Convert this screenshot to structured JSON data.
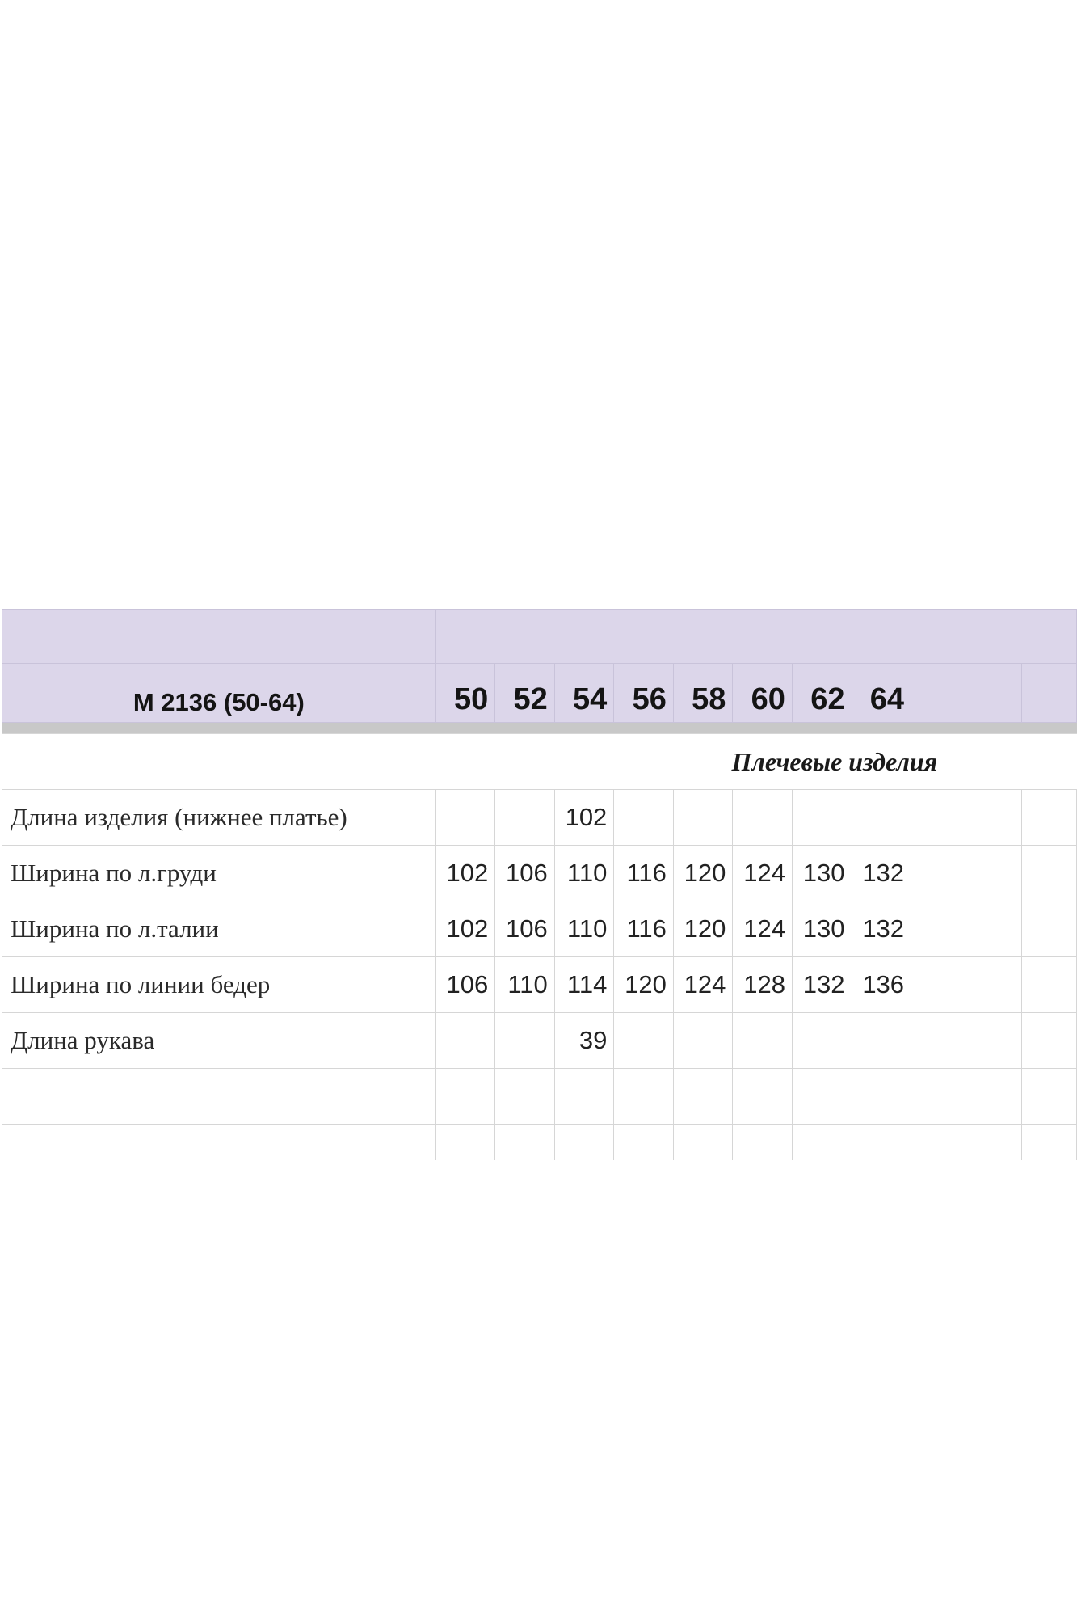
{
  "table": {
    "model_label": "M 2136 (50-64)",
    "sizes": [
      "50",
      "52",
      "54",
      "56",
      "58",
      "60",
      "62",
      "64",
      "",
      "",
      ""
    ],
    "section_title": "Плечевые изделия",
    "rows": [
      {
        "label": "Длина изделия (нижнее платье)",
        "values": [
          "",
          "",
          "102",
          "",
          "",
          "",
          "",
          "",
          "",
          "",
          ""
        ]
      },
      {
        "label": "Ширина по л.груди",
        "values": [
          "102",
          "106",
          "110",
          "116",
          "120",
          "124",
          "130",
          "132",
          "",
          "",
          ""
        ]
      },
      {
        "label": "Ширина по л.талии",
        "values": [
          "102",
          "106",
          "110",
          "116",
          "120",
          "124",
          "130",
          "132",
          "",
          "",
          ""
        ]
      },
      {
        "label": "Ширина по линии бедер",
        "values": [
          "106",
          "110",
          "114",
          "120",
          "124",
          "128",
          "132",
          "136",
          "",
          "",
          ""
        ]
      },
      {
        "label": "Длина рукава",
        "values": [
          "",
          "",
          "39",
          "",
          "",
          "",
          "",
          "",
          "",
          "",
          ""
        ]
      },
      {
        "label": "",
        "values": [
          "",
          "",
          "",
          "",
          "",
          "",
          "",
          "",
          "",
          "",
          ""
        ]
      },
      {
        "label": "",
        "values": [
          "",
          "",
          "",
          "",
          "",
          "",
          "",
          "",
          "",
          "",
          ""
        ]
      }
    ]
  },
  "colors": {
    "header_bg": "#dcd6ea",
    "separator": "#c8c8c8",
    "grid": "#d6d6d6"
  }
}
